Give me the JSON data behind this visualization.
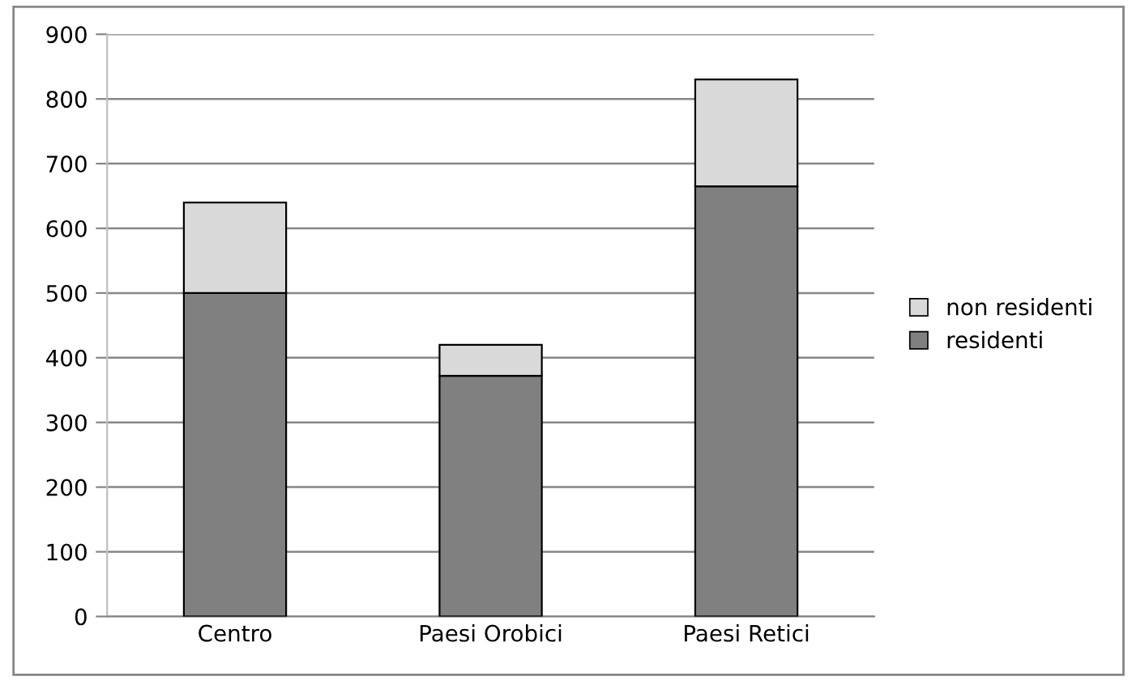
{
  "chart_data": {
    "type": "bar",
    "stacked": true,
    "categories": [
      "Centro",
      "Paesi Orobici",
      "Paesi Retici"
    ],
    "series": [
      {
        "name": "residenti",
        "color": "#808080",
        "values": [
          500,
          372,
          665
        ]
      },
      {
        "name": "non residenti",
        "color": "#d9d9d9",
        "values": [
          140,
          48,
          165
        ]
      }
    ],
    "ylim": [
      0,
      900
    ],
    "yticks": [
      0,
      100,
      200,
      300,
      400,
      500,
      600,
      700,
      800,
      900
    ],
    "grid": "y",
    "legend": "right"
  }
}
